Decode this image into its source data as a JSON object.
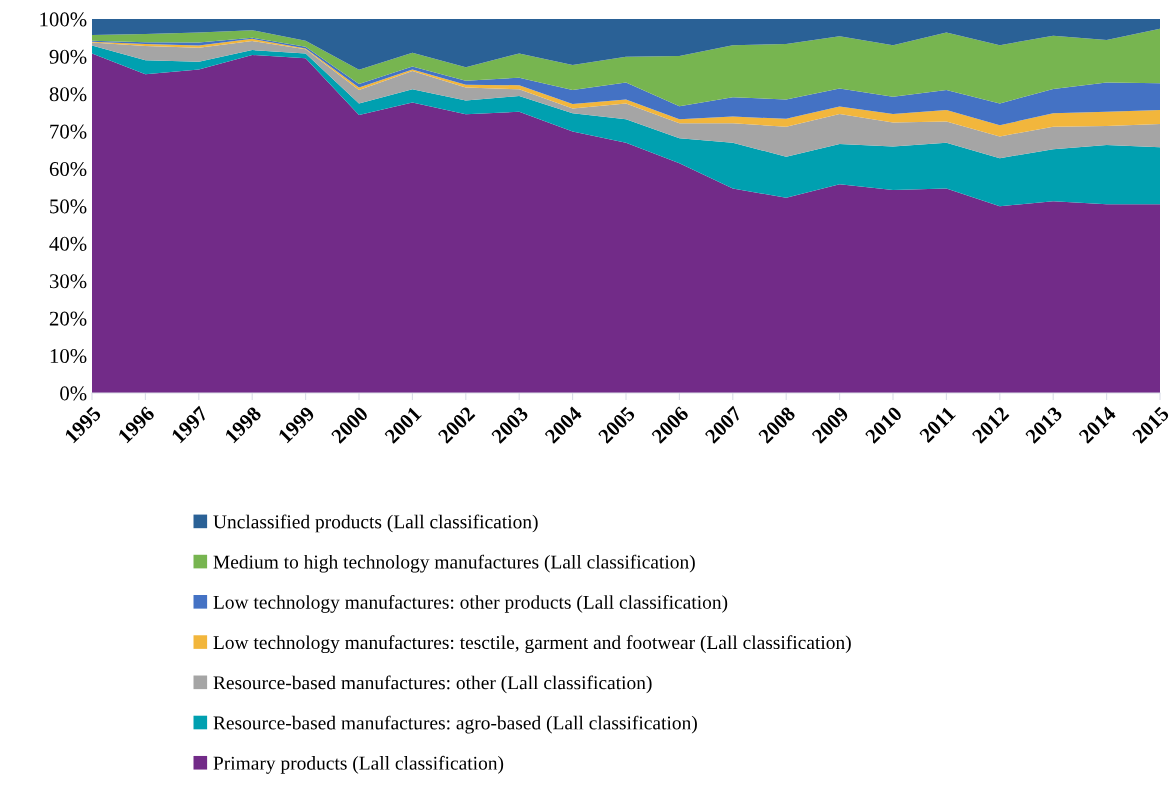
{
  "chart_data": {
    "type": "area",
    "stacked": true,
    "categories": [
      "1995",
      "1996",
      "1997",
      "1998",
      "1999",
      "2000",
      "2001",
      "2002",
      "2003",
      "2004",
      "2005",
      "2006",
      "2007",
      "2008",
      "2009",
      "2010",
      "2011",
      "2012",
      "2013",
      "2014",
      "2015"
    ],
    "series": [
      {
        "name": "Primary products (Lall classification)",
        "color": "#722b88",
        "values": [
          90.8,
          85.2,
          86.5,
          90.4,
          89.5,
          74.3,
          77.7,
          74.5,
          75.2,
          69.9,
          66.9,
          61.4,
          54.7,
          52.2,
          55.8,
          54.3,
          54.7,
          49.9,
          51.3,
          50.5,
          50.5
        ]
      },
      {
        "name": "Resource-based manufactures: agro-based (Lall classification)",
        "color": "#00a0b0",
        "values": [
          2.1,
          3.8,
          2.1,
          1.3,
          1.3,
          3.1,
          3.5,
          3.7,
          4.2,
          4.9,
          6.3,
          6.7,
          12.2,
          11.0,
          10.8,
          11.6,
          12.2,
          12.9,
          13.9,
          15.8,
          15.2
        ]
      },
      {
        "name": "Resource-based manufactures: other (Lall classification)",
        "color": "#a5a5a5",
        "values": [
          0.8,
          3.8,
          3.7,
          2.4,
          1.1,
          3.6,
          4.9,
          3.5,
          1.8,
          1.3,
          4.2,
          4.0,
          5.2,
          8.0,
          8.0,
          6.4,
          5.7,
          5.8,
          6.0,
          5.1,
          6.2
        ]
      },
      {
        "name": "Low technology manufactures: tesctile, garment and footwear (Lall classification)",
        "color": "#f2b63c",
        "values": [
          0.2,
          0.5,
          0.6,
          0.6,
          0.2,
          0.7,
          0.4,
          0.7,
          1.1,
          1.2,
          1.1,
          1.1,
          1.8,
          2.1,
          2.0,
          2.3,
          3.1,
          3.0,
          3.6,
          3.8,
          3.8
        ]
      },
      {
        "name": "Low technology manufactures: other products (Lall classification)",
        "color": "#4472c4",
        "values": [
          0.3,
          0.5,
          0.8,
          0.3,
          0.5,
          0.9,
          0.8,
          1.1,
          2.0,
          3.7,
          4.5,
          3.5,
          5.2,
          5.2,
          4.8,
          4.6,
          5.3,
          5.8,
          6.5,
          7.8,
          7.1
        ]
      },
      {
        "name": "Medium to high technology manufactures (Lall classification)",
        "color": "#77b550",
        "values": [
          1.5,
          2.2,
          2.7,
          2.0,
          1.6,
          3.8,
          3.7,
          3.6,
          6.5,
          6.7,
          6.9,
          13.4,
          13.9,
          14.8,
          14.0,
          13.8,
          15.4,
          15.6,
          14.2,
          11.4,
          14.6
        ]
      },
      {
        "name": "Unclassified products (Lall classification)",
        "color": "#2a6196",
        "values": [
          4.3,
          4.0,
          3.6,
          3.0,
          5.8,
          13.6,
          9.0,
          12.9,
          9.2,
          12.3,
          10.1,
          9.9,
          7.0,
          6.7,
          4.6,
          7.0,
          3.6,
          7.0,
          4.5,
          5.6,
          2.6
        ]
      }
    ],
    "ylim": [
      0,
      100
    ],
    "yticks": [
      {
        "value": 0,
        "label": "0%"
      },
      {
        "value": 10,
        "label": "10%"
      },
      {
        "value": 20,
        "label": "20%"
      },
      {
        "value": 30,
        "label": "30%"
      },
      {
        "value": 40,
        "label": "40%"
      },
      {
        "value": 50,
        "label": "50%"
      },
      {
        "value": 60,
        "label": "60%"
      },
      {
        "value": 70,
        "label": "70%"
      },
      {
        "value": 80,
        "label": "80%"
      },
      {
        "value": 90,
        "label": "90%"
      },
      {
        "value": 100,
        "label": "100%"
      }
    ],
    "legend": "bottom"
  }
}
